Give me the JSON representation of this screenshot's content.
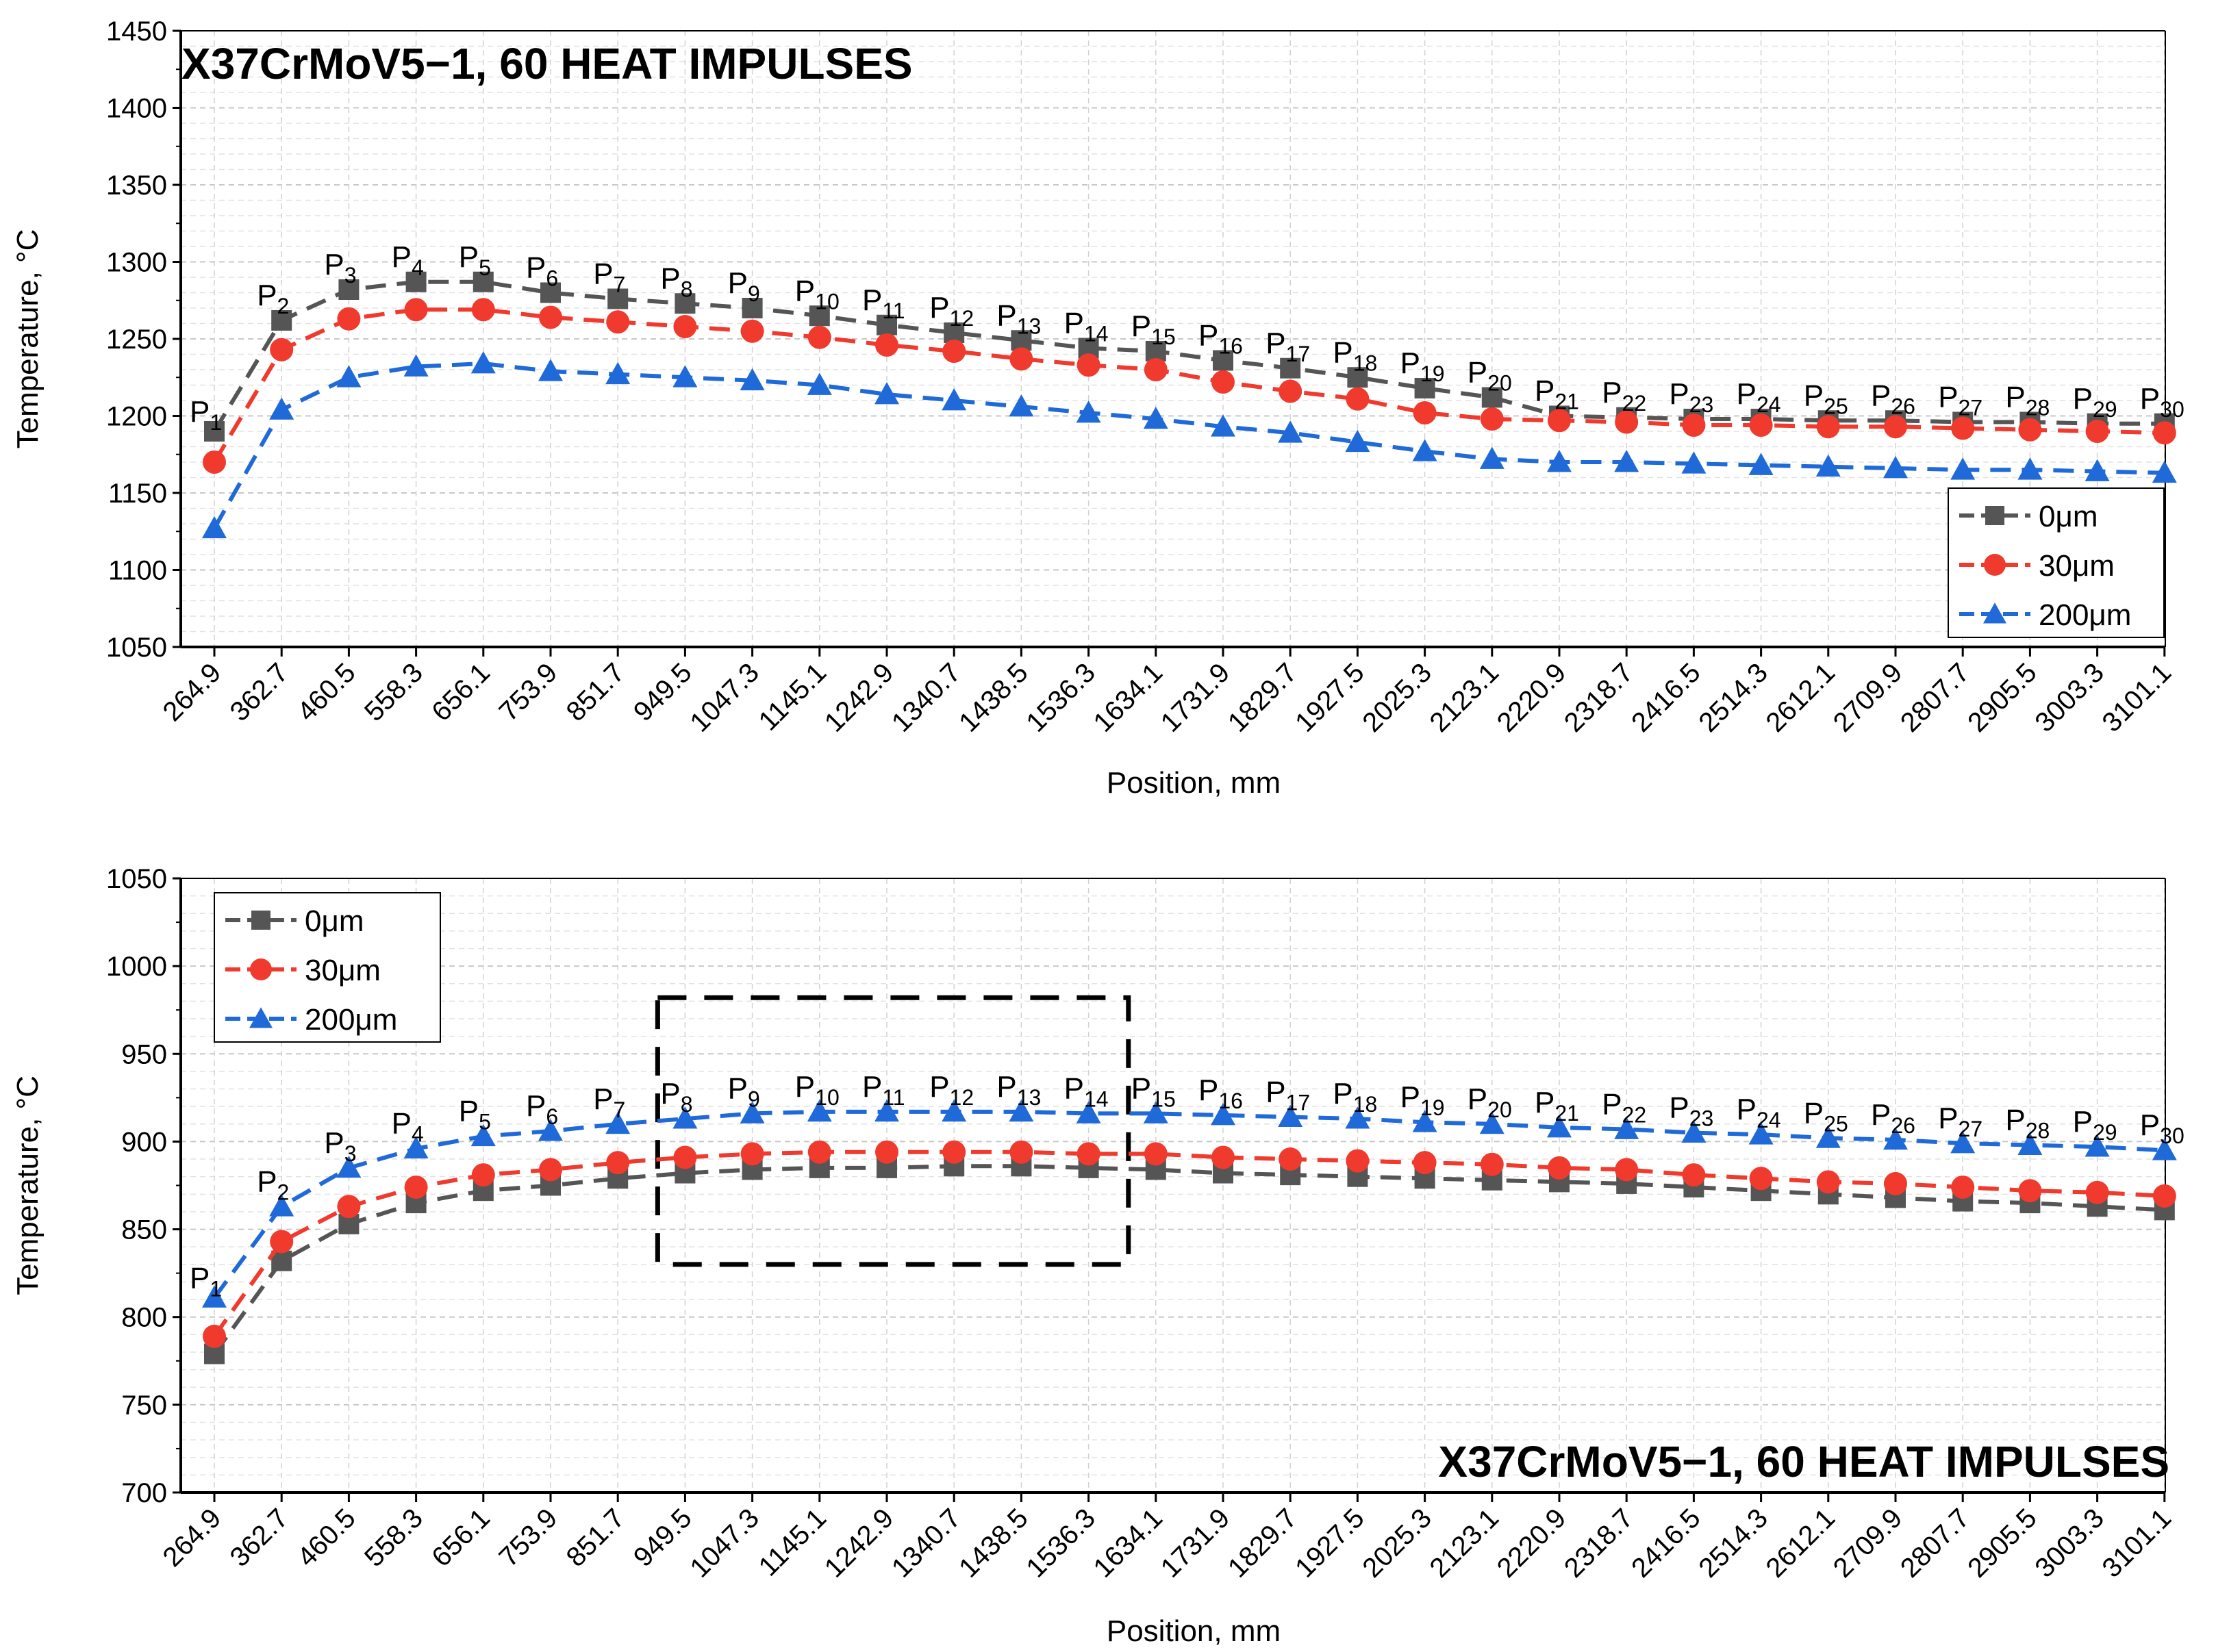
{
  "chart_data": [
    {
      "type": "line",
      "title": "X37CrMoV5−1, 60 HEAT IMPULSES",
      "title_position": "top-left",
      "xlabel": "Position, mm",
      "ylabel": "Temperature, °C",
      "ylim": [
        1050,
        1450
      ],
      "yticks": [
        "1050",
        "1100",
        "1150",
        "1200",
        "1250",
        "1300",
        "1350",
        "1400",
        "1450"
      ],
      "grid": true,
      "legend_position": "bottom-right",
      "categories": [
        "264.9",
        "362.7",
        "460.5",
        "558.3",
        "656.1",
        "753.9",
        "851.7",
        "949.5",
        "1047.3",
        "1145.1",
        "1242.9",
        "1340.7",
        "1438.5",
        "1536.3",
        "1634.1",
        "1731.9",
        "1829.7",
        "1927.5",
        "2025.3",
        "2123.1",
        "2220.9",
        "2318.7",
        "2416.5",
        "2514.3",
        "2612.1",
        "2709.9",
        "2807.7",
        "2905.5",
        "3003.3",
        "3101.1"
      ],
      "point_labels": [
        "P1",
        "P2",
        "P3",
        "P4",
        "P5",
        "P6",
        "P7",
        "P8",
        "P9",
        "P10",
        "P11",
        "P12",
        "P13",
        "P14",
        "P15",
        "P16",
        "P17",
        "P18",
        "P19",
        "P20",
        "P21",
        "P22",
        "P23",
        "P24",
        "P25",
        "P26",
        "P27",
        "P28",
        "P29",
        "P30"
      ],
      "series": [
        {
          "name": "0μm",
          "color": "#555555",
          "marker": "square",
          "values": [
            1190,
            1262,
            1282,
            1287,
            1287,
            1280,
            1276,
            1273,
            1270,
            1265,
            1259,
            1254,
            1249,
            1244,
            1242,
            1236,
            1231,
            1225,
            1218,
            1212,
            1200,
            1199,
            1198,
            1198,
            1197,
            1197,
            1196,
            1196,
            1195,
            1195
          ]
        },
        {
          "name": "30μm",
          "color": "#f03a2e",
          "marker": "circle",
          "values": [
            1170,
            1243,
            1263,
            1269,
            1269,
            1264,
            1261,
            1258,
            1255,
            1251,
            1246,
            1242,
            1237,
            1233,
            1230,
            1222,
            1216,
            1211,
            1202,
            1198,
            1197,
            1196,
            1194,
            1194,
            1193,
            1193,
            1192,
            1191,
            1190,
            1189
          ]
        },
        {
          "name": "200μm",
          "color": "#1f6ad8",
          "marker": "triangle",
          "values": [
            1127,
            1204,
            1225,
            1232,
            1234,
            1229,
            1227,
            1225,
            1223,
            1220,
            1214,
            1210,
            1206,
            1202,
            1198,
            1193,
            1189,
            1183,
            1177,
            1172,
            1170,
            1170,
            1169,
            1168,
            1167,
            1166,
            1165,
            1165,
            1164,
            1163
          ]
        }
      ]
    },
    {
      "type": "line",
      "title": "X37CrMoV5−1, 60 HEAT IMPULSES",
      "title_position": "bottom-right",
      "xlabel": "Position, mm",
      "ylabel": "Temperature, °C",
      "ylim": [
        700,
        1050
      ],
      "yticks": [
        "700",
        "750",
        "800",
        "850",
        "900",
        "950",
        "1000",
        "1050"
      ],
      "grid": true,
      "legend_position": "top-left",
      "highlight_box": {
        "from": "949.5",
        "to": "1634.1"
      },
      "categories": [
        "264.9",
        "362.7",
        "460.5",
        "558.3",
        "656.1",
        "753.9",
        "851.7",
        "949.5",
        "1047.3",
        "1145.1",
        "1242.9",
        "1340.7",
        "1438.5",
        "1536.3",
        "1634.1",
        "1731.9",
        "1829.7",
        "1927.5",
        "2025.3",
        "2123.1",
        "2220.9",
        "2318.7",
        "2416.5",
        "2514.3",
        "2612.1",
        "2709.9",
        "2807.7",
        "2905.5",
        "3003.3",
        "3101.1"
      ],
      "point_labels": [
        "P1",
        "P2",
        "P3",
        "P4",
        "P5",
        "P6",
        "P7",
        "P8",
        "P9",
        "P10",
        "P11",
        "P12",
        "P13",
        "P14",
        "P15",
        "P16",
        "P17",
        "P18",
        "P19",
        "P20",
        "P21",
        "P22",
        "P23",
        "P24",
        "P25",
        "P26",
        "P27",
        "P28",
        "P29",
        "P30"
      ],
      "series": [
        {
          "name": "0μm",
          "color": "#555555",
          "marker": "square",
          "values": [
            779,
            832,
            853,
            865,
            872,
            875,
            879,
            882,
            884,
            885,
            885,
            886,
            886,
            885,
            884,
            882,
            881,
            880,
            879,
            878,
            877,
            876,
            874,
            872,
            870,
            868,
            866,
            865,
            863,
            861
          ]
        },
        {
          "name": "30μm",
          "color": "#f03a2e",
          "marker": "circle",
          "values": [
            789,
            843,
            863,
            874,
            881,
            884,
            888,
            891,
            893,
            894,
            894,
            894,
            894,
            893,
            893,
            891,
            890,
            889,
            888,
            887,
            885,
            884,
            881,
            879,
            877,
            876,
            874,
            872,
            871,
            869
          ]
        },
        {
          "name": "200μm",
          "color": "#1f6ad8",
          "marker": "triangle",
          "values": [
            811,
            863,
            885,
            896,
            903,
            906,
            910,
            913,
            916,
            917,
            917,
            917,
            917,
            916,
            916,
            915,
            914,
            913,
            911,
            910,
            908,
            907,
            905,
            904,
            902,
            901,
            899,
            898,
            897,
            895
          ]
        }
      ]
    }
  ]
}
